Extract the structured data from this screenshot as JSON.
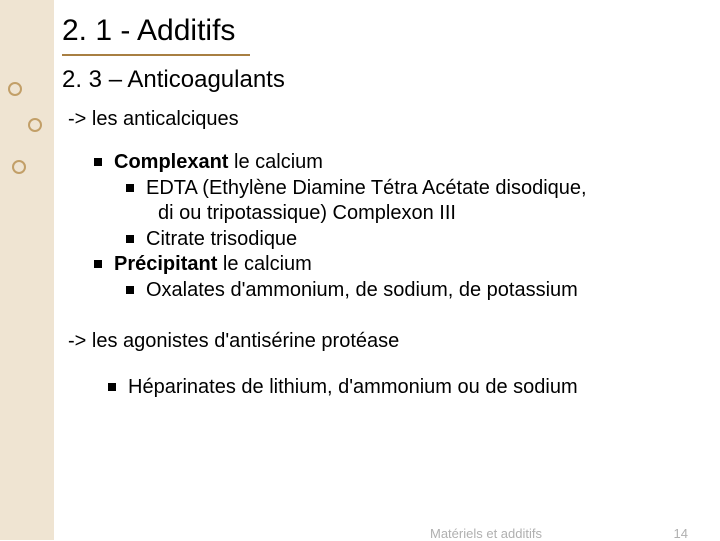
{
  "colors": {
    "sidebar_bg": "#efe4d2",
    "circle_border": "#c29f68",
    "title_underline": "#a87f42",
    "text": "#000000",
    "footer": "#b0b0b0",
    "background": "#ffffff"
  },
  "title": "2. 1 - Additifs",
  "subtitle": "2. 3 – Anticoagulants",
  "section1_intro": "-> les anticalciques",
  "section1": {
    "b1": "Complexant",
    "b1_rest": " le calcium",
    "b1a": "EDTA (Ethylène Diamine Tétra Acétate disodique,",
    "b1a_cont": "di ou tripotassique) Complexon III",
    "b1b": "Citrate trisodique",
    "b2": "Précipitant",
    "b2_rest": " le calcium",
    "b2a": "Oxalates d'ammonium, de sodium, de potassium"
  },
  "section2_intro": "-> les agonistes d'antisérine protéase",
  "section2": {
    "b1": "Héparinates de lithium, d'ammonium ou de sodium"
  },
  "footer": {
    "text": "Matériels et additifs",
    "page": "14"
  }
}
